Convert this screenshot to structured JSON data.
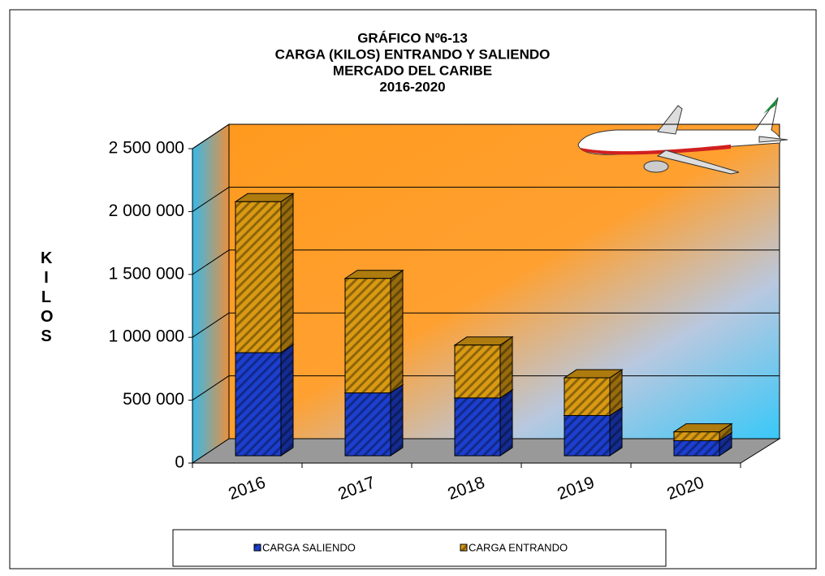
{
  "chart_data": {
    "type": "bar3d_stacked",
    "title": "GRÁFICO Nº6-13",
    "subtitle": [
      "CARGA (KILOS) ENTRANDO Y SALIENDO",
      "MERCADO DEL CARIBE",
      "2016-2020"
    ],
    "y_label": "KILOS",
    "categories": [
      "2016",
      "2017",
      "2018",
      "2019",
      "2020"
    ],
    "series": [
      {
        "name": "CARGA SALIENDO",
        "color": "#1c3fd0",
        "values": [
          820000,
          500000,
          460000,
          320000,
          120000
        ]
      },
      {
        "name": "CARGA ENTRANDO",
        "color": "#d99a12",
        "values": [
          1200000,
          910000,
          420000,
          300000,
          70000
        ]
      }
    ],
    "ylim": [
      0,
      2500000
    ],
    "yticks": [
      0,
      {
        "value": 500000,
        "label": "500 000"
      },
      {
        "value": 1000000,
        "label": "1 000 000"
      },
      {
        "value": 1500000,
        "label": "1 500 000"
      },
      {
        "value": 2000000,
        "label": "2 000 000"
      },
      {
        "value": 2500000,
        "label": "2 500 000"
      }
    ],
    "grid": true
  }
}
